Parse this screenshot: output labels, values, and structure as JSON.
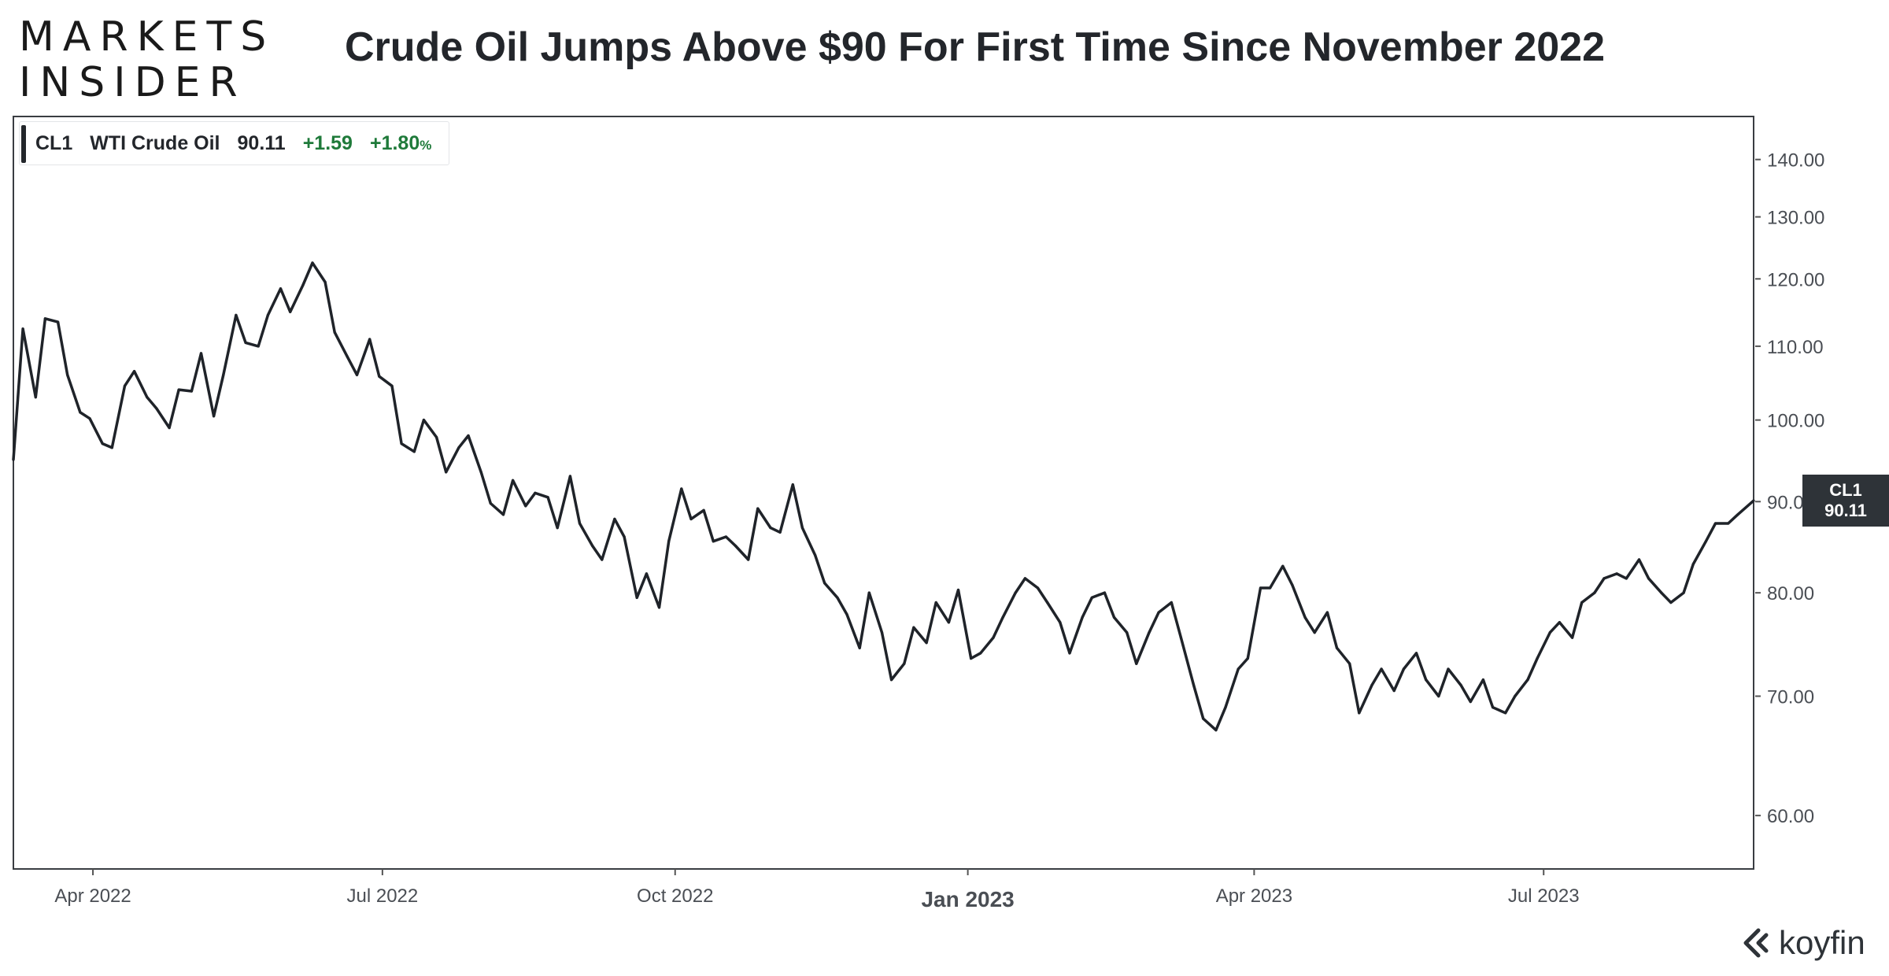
{
  "brand": {
    "line1": "MARKETS",
    "line2": "INSIDER"
  },
  "title": "Crude Oil Jumps Above $90 For First Time Since November 2022",
  "legend": {
    "ticker": "CL1",
    "name": "WTI Crude Oil",
    "price": "90.11",
    "change": "+1.59",
    "change_pct": "+1.80",
    "pct_sign": "%"
  },
  "price_tag": {
    "ticker": "CL1",
    "price": "90.11"
  },
  "koyfin": {
    "label": "koyfin",
    "icon": "koyfin-logo-icon"
  },
  "colors": {
    "line": "#1f2329",
    "positive": "#1f7a3a",
    "tag_bg": "#2e3338"
  },
  "chart_data": {
    "type": "line",
    "title": "",
    "xlabel": "",
    "ylabel": "",
    "y_scale": "log",
    "y_axis_side": "right",
    "ylim": [
      56,
      148
    ],
    "xlim": [
      "2022-03-07",
      "2023-09-05"
    ],
    "legend_position": "top-left",
    "grid": false,
    "y_ticks": [
      60,
      70,
      80,
      90,
      100,
      110,
      120,
      130,
      140
    ],
    "y_tick_labels": [
      "60.00",
      "70.00",
      "80.00",
      "90.00",
      "100.00",
      "110.00",
      "120.00",
      "130.00",
      "140.00"
    ],
    "x_ticks": [
      {
        "date": "2022-04-01",
        "label": "Apr 2022",
        "major": false
      },
      {
        "date": "2022-07-01",
        "label": "Jul 2022",
        "major": false
      },
      {
        "date": "2022-10-01",
        "label": "Oct 2022",
        "major": false
      },
      {
        "date": "2023-01-01",
        "label": "Jan 2023",
        "major": true
      },
      {
        "date": "2023-04-01",
        "label": "Apr 2023",
        "major": false
      },
      {
        "date": "2023-07-01",
        "label": "Jul 2023",
        "major": false
      }
    ],
    "series": [
      {
        "name": "CL1",
        "x": [
          "2022-03-07",
          "2022-03-10",
          "2022-03-14",
          "2022-03-17",
          "2022-03-21",
          "2022-03-24",
          "2022-03-28",
          "2022-03-31",
          "2022-04-04",
          "2022-04-07",
          "2022-04-11",
          "2022-04-14",
          "2022-04-18",
          "2022-04-21",
          "2022-04-25",
          "2022-04-28",
          "2022-05-02",
          "2022-05-05",
          "2022-05-09",
          "2022-05-12",
          "2022-05-16",
          "2022-05-19",
          "2022-05-23",
          "2022-05-26",
          "2022-05-30",
          "2022-06-02",
          "2022-06-06",
          "2022-06-09",
          "2022-06-13",
          "2022-06-16",
          "2022-06-20",
          "2022-06-23",
          "2022-06-27",
          "2022-06-30",
          "2022-07-04",
          "2022-07-07",
          "2022-07-11",
          "2022-07-14",
          "2022-07-18",
          "2022-07-21",
          "2022-07-25",
          "2022-07-28",
          "2022-08-01",
          "2022-08-04",
          "2022-08-08",
          "2022-08-11",
          "2022-08-15",
          "2022-08-18",
          "2022-08-22",
          "2022-08-25",
          "2022-08-29",
          "2022-09-01",
          "2022-09-05",
          "2022-09-08",
          "2022-09-12",
          "2022-09-15",
          "2022-09-19",
          "2022-09-22",
          "2022-09-26",
          "2022-09-29",
          "2022-10-03",
          "2022-10-06",
          "2022-10-10",
          "2022-10-13",
          "2022-10-17",
          "2022-10-20",
          "2022-10-24",
          "2022-10-27",
          "2022-10-31",
          "2022-11-03",
          "2022-11-07",
          "2022-11-10",
          "2022-11-14",
          "2022-11-17",
          "2022-11-21",
          "2022-11-24",
          "2022-11-28",
          "2022-12-01",
          "2022-12-05",
          "2022-12-08",
          "2022-12-12",
          "2022-12-15",
          "2022-12-19",
          "2022-12-22",
          "2022-12-26",
          "2022-12-29",
          "2023-01-02",
          "2023-01-05",
          "2023-01-09",
          "2023-01-12",
          "2023-01-16",
          "2023-01-19",
          "2023-01-23",
          "2023-01-26",
          "2023-01-30",
          "2023-02-02",
          "2023-02-06",
          "2023-02-09",
          "2023-02-13",
          "2023-02-16",
          "2023-02-20",
          "2023-02-23",
          "2023-02-27",
          "2023-03-02",
          "2023-03-06",
          "2023-03-09",
          "2023-03-13",
          "2023-03-16",
          "2023-03-20",
          "2023-03-23",
          "2023-03-27",
          "2023-03-30",
          "2023-04-03",
          "2023-04-06",
          "2023-04-10",
          "2023-04-13",
          "2023-04-17",
          "2023-04-20",
          "2023-04-24",
          "2023-04-27",
          "2023-05-01",
          "2023-05-04",
          "2023-05-08",
          "2023-05-11",
          "2023-05-15",
          "2023-05-18",
          "2023-05-22",
          "2023-05-25",
          "2023-05-29",
          "2023-06-01",
          "2023-06-05",
          "2023-06-08",
          "2023-06-12",
          "2023-06-15",
          "2023-06-19",
          "2023-06-22",
          "2023-06-26",
          "2023-06-29",
          "2023-07-03",
          "2023-07-06",
          "2023-07-10",
          "2023-07-13",
          "2023-07-17",
          "2023-07-20",
          "2023-07-24",
          "2023-07-27",
          "2023-07-31",
          "2023-08-03",
          "2023-08-07",
          "2023-08-10",
          "2023-08-14",
          "2023-08-17",
          "2023-08-21",
          "2023-08-24",
          "2023-08-28",
          "2023-08-31",
          "2023-09-05"
        ],
        "values": [
          95.0,
          112.5,
          103.0,
          114.0,
          113.5,
          106.0,
          101.0,
          100.2,
          97.0,
          96.5,
          104.5,
          106.5,
          103.0,
          101.5,
          99.0,
          104.0,
          103.8,
          109.0,
          100.5,
          106.0,
          114.5,
          110.5,
          110.0,
          114.5,
          118.5,
          115.0,
          119.0,
          122.5,
          119.5,
          112.0,
          108.5,
          106.0,
          111.0,
          105.8,
          104.5,
          97.0,
          96.0,
          100.0,
          97.8,
          93.5,
          96.5,
          98.0,
          93.5,
          89.8,
          88.5,
          92.5,
          89.5,
          91.0,
          90.5,
          87.0,
          93.0,
          87.5,
          85.0,
          83.5,
          88.0,
          86.0,
          79.5,
          82.0,
          78.5,
          85.5,
          91.5,
          88.0,
          89.0,
          85.5,
          86.0,
          85.0,
          83.5,
          89.2,
          87.0,
          86.5,
          92.0,
          87.0,
          84.0,
          81.0,
          79.5,
          77.8,
          74.5,
          80.0,
          76.0,
          71.5,
          73.0,
          76.5,
          75.0,
          79.0,
          77.0,
          80.3,
          73.5,
          74.0,
          75.5,
          77.5,
          80.0,
          81.5,
          80.5,
          79.0,
          77.0,
          74.0,
          77.5,
          79.5,
          80.0,
          77.5,
          76.0,
          73.0,
          76.0,
          78.0,
          79.0,
          75.5,
          71.0,
          68.0,
          67.0,
          69.0,
          72.5,
          73.5,
          80.5,
          80.5,
          82.8,
          80.8,
          77.5,
          76.0,
          78.0,
          74.5,
          73.0,
          68.5,
          71.0,
          72.5,
          70.5,
          72.5,
          74.0,
          71.5,
          70.0,
          72.5,
          71.0,
          69.5,
          71.5,
          69.0,
          68.5,
          70.0,
          71.5,
          73.5,
          76.0,
          77.0,
          75.5,
          79.0,
          80.0,
          81.5,
          82.0,
          81.5,
          83.5,
          81.5,
          80.0,
          79.0,
          80.0,
          83.0,
          85.5,
          87.5,
          87.5,
          88.5,
          90.11
        ]
      }
    ]
  }
}
